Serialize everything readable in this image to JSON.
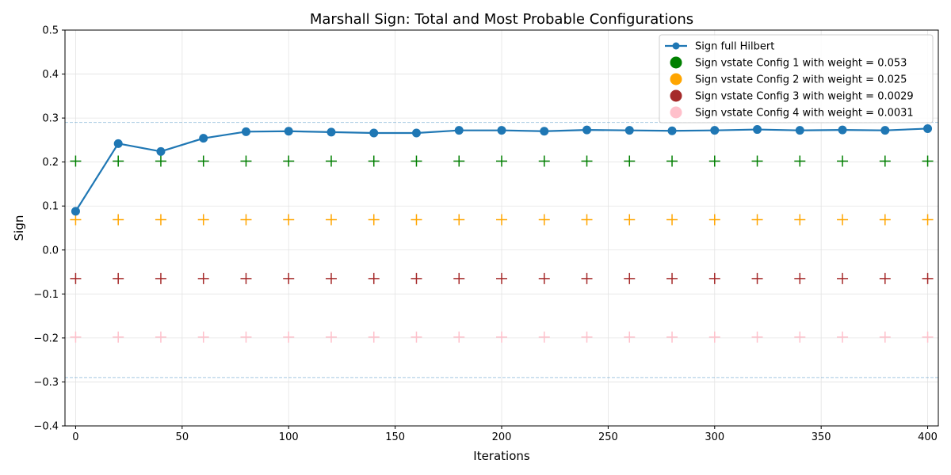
{
  "chart_data": {
    "type": "line",
    "title": "Marshall Sign: Total and Most Probable Configurations",
    "xlabel": "Iterations",
    "ylabel": "Sign",
    "xlim": [
      -5,
      405
    ],
    "ylim": [
      -0.4,
      0.5
    ],
    "xticks": [
      0,
      50,
      100,
      150,
      200,
      250,
      300,
      350,
      400
    ],
    "yticks": [
      -0.4,
      -0.3,
      -0.2,
      -0.1,
      0.0,
      0.1,
      0.2,
      0.3,
      0.4,
      0.5
    ],
    "grid": true,
    "legend_location": "top-right",
    "x": [
      0,
      20,
      40,
      60,
      80,
      100,
      120,
      140,
      160,
      180,
      200,
      220,
      240,
      260,
      280,
      300,
      320,
      340,
      360,
      380,
      400
    ],
    "series": [
      {
        "name": "Sign full Hilbert",
        "style": "line-marker",
        "color": "#1f77b4",
        "values": [
          0.088,
          0.242,
          0.224,
          0.254,
          0.269,
          0.27,
          0.268,
          0.266,
          0.266,
          0.272,
          0.272,
          0.27,
          0.273,
          0.272,
          0.271,
          0.272,
          0.274,
          0.272,
          0.273,
          0.272,
          0.276
        ]
      },
      {
        "name": "Sign vstate Config 1 with weight = 0.053",
        "style": "plus",
        "color": "#008000",
        "values": [
          0.202,
          0.202,
          0.202,
          0.202,
          0.202,
          0.202,
          0.202,
          0.202,
          0.202,
          0.202,
          0.202,
          0.202,
          0.202,
          0.202,
          0.202,
          0.202,
          0.202,
          0.202,
          0.202,
          0.202,
          0.202
        ]
      },
      {
        "name": "Sign vstate Config 2 with weight = 0.025",
        "style": "plus",
        "color": "#ffa500",
        "values": [
          0.069,
          0.069,
          0.069,
          0.069,
          0.069,
          0.069,
          0.069,
          0.069,
          0.069,
          0.069,
          0.069,
          0.069,
          0.069,
          0.069,
          0.069,
          0.069,
          0.069,
          0.069,
          0.069,
          0.069,
          0.069
        ]
      },
      {
        "name": "Sign vstate Config 3 with weight = 0.0029",
        "style": "plus",
        "color": "#a52a2a",
        "values": [
          -0.065,
          -0.065,
          -0.065,
          -0.065,
          -0.065,
          -0.065,
          -0.065,
          -0.065,
          -0.065,
          -0.065,
          -0.065,
          -0.065,
          -0.065,
          -0.065,
          -0.065,
          -0.065,
          -0.065,
          -0.065,
          -0.065,
          -0.065,
          -0.065
        ]
      },
      {
        "name": "Sign vstate Config 4 with weight = 0.0031",
        "style": "plus",
        "color": "#ffc0cb",
        "values": [
          -0.198,
          -0.198,
          -0.198,
          -0.198,
          -0.198,
          -0.198,
          -0.198,
          -0.198,
          -0.198,
          -0.198,
          -0.198,
          -0.198,
          -0.198,
          -0.198,
          -0.198,
          -0.198,
          -0.198,
          -0.198,
          -0.198,
          -0.198,
          -0.198
        ]
      }
    ],
    "reference_lines": [
      {
        "y": 0.29,
        "color": "#1f77b4"
      },
      {
        "y": -0.29,
        "color": "#1f77b4"
      }
    ]
  }
}
